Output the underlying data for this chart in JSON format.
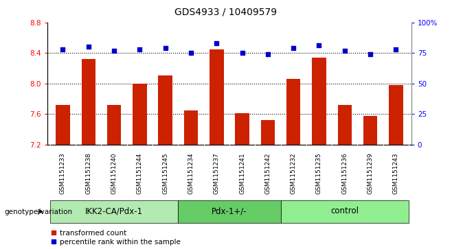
{
  "title": "GDS4933 / 10409579",
  "samples": [
    "GSM1151233",
    "GSM1151238",
    "GSM1151240",
    "GSM1151244",
    "GSM1151245",
    "GSM1151234",
    "GSM1151237",
    "GSM1151241",
    "GSM1151242",
    "GSM1151232",
    "GSM1151235",
    "GSM1151236",
    "GSM1151239",
    "GSM1151243"
  ],
  "bar_values": [
    7.72,
    8.32,
    7.72,
    8.0,
    8.1,
    7.65,
    8.45,
    7.61,
    7.52,
    8.06,
    8.34,
    7.72,
    7.57,
    7.98
  ],
  "dot_values": [
    78,
    80,
    77,
    78,
    79,
    75,
    83,
    75,
    74,
    79,
    81,
    77,
    74,
    78
  ],
  "groups": [
    {
      "label": "IKK2-CA/Pdx-1",
      "start": 0,
      "end": 5
    },
    {
      "label": "Pdx-1+/-",
      "start": 5,
      "end": 9
    },
    {
      "label": "control",
      "start": 9,
      "end": 14
    }
  ],
  "bar_color": "#cc2200",
  "dot_color": "#0000cc",
  "ylim_left": [
    7.2,
    8.8
  ],
  "ylim_right": [
    0,
    100
  ],
  "yticks_left": [
    7.2,
    7.6,
    8.0,
    8.4,
    8.8
  ],
  "yticks_right": [
    0,
    25,
    50,
    75,
    100
  ],
  "hlines": [
    7.6,
    8.0,
    8.4
  ],
  "xlabel_group": "genotype/variation",
  "legend_bar": "transformed count",
  "legend_dot": "percentile rank within the sample",
  "tick_fontsize": 7.5,
  "title_fontsize": 10,
  "sample_fontsize": 6.5,
  "group_fontsize": 8.5,
  "sample_area_color": "#d8d8d8",
  "group_area_color": "#90ee90",
  "spine_color": "#888888"
}
